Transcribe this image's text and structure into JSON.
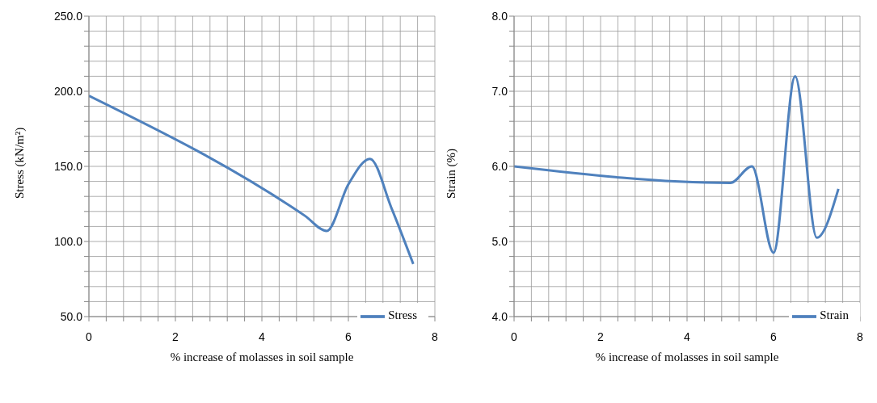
{
  "chart_data": [
    {
      "type": "line",
      "xlabel": "% increase of molasses in soil sample",
      "ylabel": "Stress (kN/m²)",
      "x": [
        0,
        5,
        5.5,
        6,
        6.5,
        7,
        7.5
      ],
      "series": [
        {
          "name": "Stress",
          "color": "#4f81bd",
          "values": [
            197,
            117,
            107,
            138,
            155,
            122,
            85
          ]
        }
      ],
      "xlim": [
        0,
        8
      ],
      "xticks": [
        0,
        {
          "value": 0.4,
          "label": null
        },
        {
          "value": 0.8,
          "label": null
        },
        {
          "value": 1.2,
          "label": null
        },
        {
          "value": 1.6,
          "label": null
        },
        2,
        {
          "value": 2.4,
          "label": null
        },
        {
          "value": 2.8,
          "label": null
        },
        {
          "value": 3.2,
          "label": null
        },
        {
          "value": 3.6,
          "label": null
        },
        4,
        {
          "value": 4.4,
          "label": null
        },
        {
          "value": 4.8,
          "label": null
        },
        {
          "value": 5.2,
          "label": null
        },
        {
          "value": 5.6,
          "label": null
        },
        6,
        {
          "value": 6.4,
          "label": null
        },
        {
          "value": 6.8,
          "label": null
        },
        {
          "value": 7.2,
          "label": null
        },
        {
          "value": 7.6,
          "label": null
        },
        8
      ],
      "ylim": [
        50,
        250
      ],
      "yticks": [
        {
          "value": 50,
          "label": "50.0"
        },
        {
          "value": 60,
          "label": null
        },
        {
          "value": 70,
          "label": null
        },
        {
          "value": 80,
          "label": null
        },
        {
          "value": 90,
          "label": null
        },
        {
          "value": 100,
          "label": "100.0"
        },
        {
          "value": 110,
          "label": null
        },
        {
          "value": 120,
          "label": null
        },
        {
          "value": 130,
          "label": null
        },
        {
          "value": 140,
          "label": null
        },
        {
          "value": 150,
          "label": "150.0"
        },
        {
          "value": 160,
          "label": null
        },
        {
          "value": 170,
          "label": null
        },
        {
          "value": 180,
          "label": null
        },
        {
          "value": 190,
          "label": null
        },
        {
          "value": 200,
          "label": "200.0"
        },
        {
          "value": 210,
          "label": null
        },
        {
          "value": 220,
          "label": null
        },
        {
          "value": 230,
          "label": null
        },
        {
          "value": 240,
          "label": null
        },
        {
          "value": 250,
          "label": "250.0"
        }
      ],
      "grid": true,
      "legend": "bottom right",
      "marker": "none",
      "line_style": "solid"
    },
    {
      "type": "line",
      "xlabel": "% increase of molasses in soil sample",
      "ylabel": "Strain (%)",
      "x": [
        0,
        5,
        5.5,
        6,
        6.5,
        7,
        7.5
      ],
      "series": [
        {
          "name": "Strain",
          "color": "#4f81bd",
          "values": [
            6.0,
            5.78,
            6.0,
            4.85,
            7.2,
            5.05,
            5.7
          ]
        }
      ],
      "xlim": [
        0,
        8
      ],
      "xticks": [
        0,
        {
          "value": 0.4,
          "label": null
        },
        {
          "value": 0.8,
          "label": null
        },
        {
          "value": 1.2,
          "label": null
        },
        {
          "value": 1.6,
          "label": null
        },
        2,
        {
          "value": 2.4,
          "label": null
        },
        {
          "value": 2.8,
          "label": null
        },
        {
          "value": 3.2,
          "label": null
        },
        {
          "value": 3.6,
          "label": null
        },
        4,
        {
          "value": 4.4,
          "label": null
        },
        {
          "value": 4.8,
          "label": null
        },
        {
          "value": 5.2,
          "label": null
        },
        {
          "value": 5.6,
          "label": null
        },
        6,
        {
          "value": 6.4,
          "label": null
        },
        {
          "value": 6.8,
          "label": null
        },
        {
          "value": 7.2,
          "label": null
        },
        {
          "value": 7.6,
          "label": null
        },
        8
      ],
      "ylim": [
        4,
        8
      ],
      "yticks": [
        {
          "value": 4,
          "label": "4.0"
        },
        {
          "value": 4.2,
          "label": null
        },
        {
          "value": 4.4,
          "label": null
        },
        {
          "value": 4.6,
          "label": null
        },
        {
          "value": 4.8,
          "label": null
        },
        {
          "value": 5,
          "label": "5.0"
        },
        {
          "value": 5.2,
          "label": null
        },
        {
          "value": 5.4,
          "label": null
        },
        {
          "value": 5.6,
          "label": null
        },
        {
          "value": 5.8,
          "label": null
        },
        {
          "value": 6,
          "label": "6.0"
        },
        {
          "value": 6.2,
          "label": null
        },
        {
          "value": 6.4,
          "label": null
        },
        {
          "value": 6.6,
          "label": null
        },
        {
          "value": 6.8,
          "label": null
        },
        {
          "value": 7,
          "label": "7.0"
        },
        {
          "value": 7.2,
          "label": null
        },
        {
          "value": 7.4,
          "label": null
        },
        {
          "value": 7.6,
          "label": null
        },
        {
          "value": 7.8,
          "label": null
        },
        {
          "value": 8,
          "label": "8.0"
        }
      ],
      "grid": true,
      "legend": "bottom right",
      "marker": "none",
      "line_style": "solid"
    }
  ]
}
